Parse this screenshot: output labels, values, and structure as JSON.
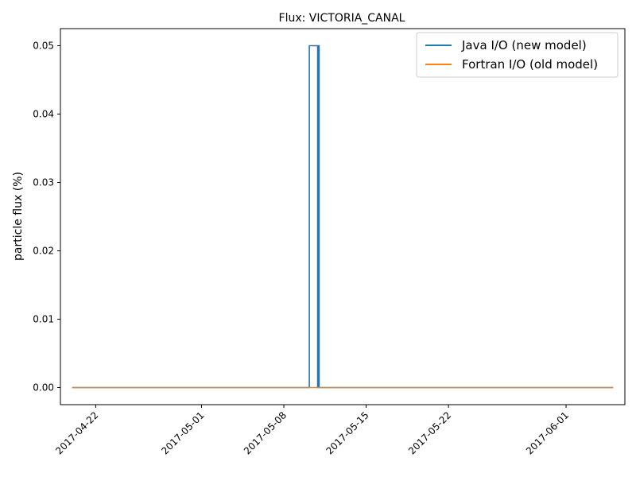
{
  "chart_data": {
    "type": "line",
    "title": "Flux: VICTORIA_CANAL",
    "xlabel": "",
    "ylabel": "particle flux (%)",
    "x_axis": {
      "type": "date",
      "range": [
        "2017-04-19",
        "2017-06-06"
      ],
      "ticks": [
        "2017-04-22",
        "2017-05-01",
        "2017-05-08",
        "2017-05-15",
        "2017-05-22",
        "2017-06-01"
      ]
    },
    "y_axis": {
      "range": [
        -0.0025,
        0.0525
      ],
      "ticks": [
        "0.00",
        "0.01",
        "0.02",
        "0.03",
        "0.04",
        "0.05"
      ],
      "tick_values": [
        0,
        0.01,
        0.02,
        0.03,
        0.04,
        0.05
      ]
    },
    "grid": false,
    "legend": {
      "placement": "top-right"
    },
    "series": [
      {
        "name": "Java I/O (new model)",
        "color": "#1f77b4",
        "step": true,
        "points": [
          [
            "2017-04-20T00:00",
            0
          ],
          [
            "2017-05-10T04:00",
            0
          ],
          [
            "2017-05-10T04:00",
            0.05
          ],
          [
            "2017-05-10T21:00",
            0.05
          ],
          [
            "2017-05-10T21:00",
            0
          ],
          [
            "2017-05-10T22:00",
            0
          ],
          [
            "2017-05-10T22:00",
            0.05
          ],
          [
            "2017-05-11T00:00",
            0.05
          ],
          [
            "2017-05-11T00:00",
            0
          ],
          [
            "2017-06-05T00:00",
            0
          ]
        ]
      },
      {
        "name": "Fortran I/O (old model)",
        "color": "#ff7f0e",
        "step": true,
        "points": [
          [
            "2017-04-20T00:00",
            0
          ],
          [
            "2017-06-05T00:00",
            0
          ]
        ]
      }
    ]
  }
}
